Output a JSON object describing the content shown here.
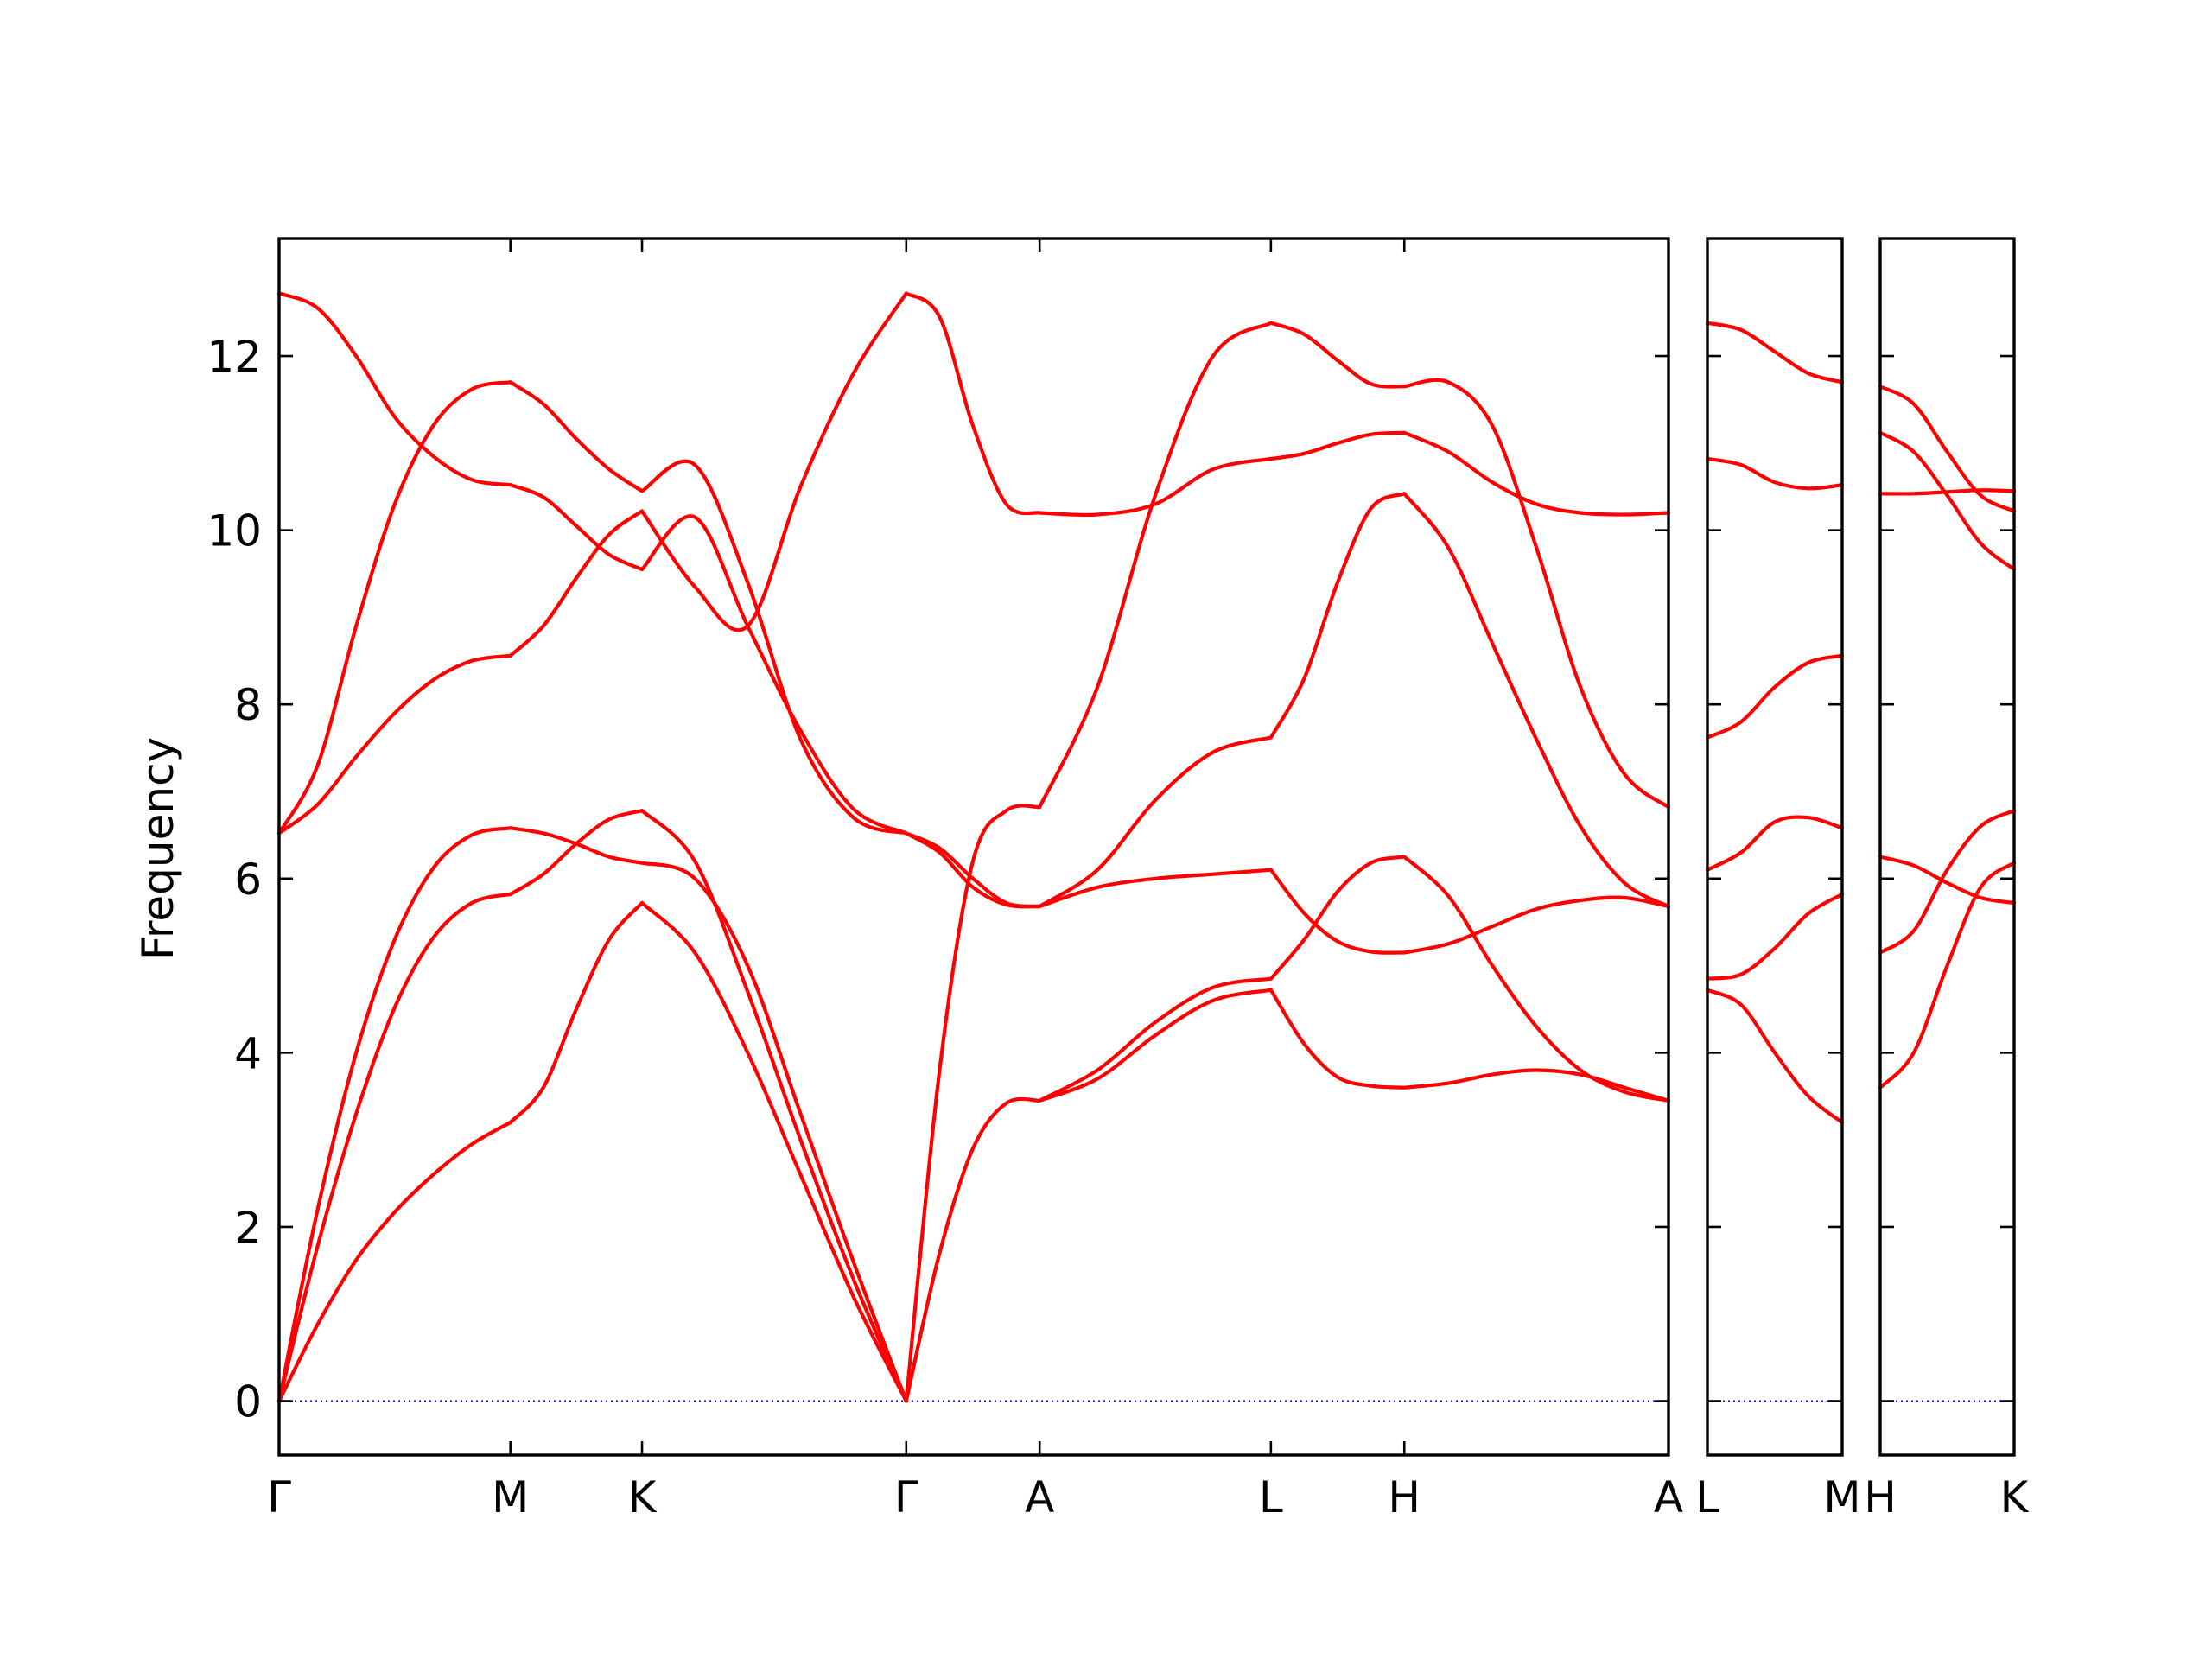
{
  "chart_data": {
    "type": "line",
    "title": "",
    "xlabel": "",
    "ylabel": "Frequency",
    "ylim": [
      -0.62,
      13.35
    ],
    "yticks": [
      0,
      2,
      4,
      6,
      8,
      10,
      12
    ],
    "grid": false,
    "legend": "none",
    "colors": {
      "bands": "#ff0000",
      "zero_line": "#0000ff",
      "frame": "#000000"
    },
    "panels": [
      {
        "labels": [
          "Γ",
          "M",
          "K",
          "Γ",
          "A",
          "L",
          "H",
          "A"
        ],
        "segments": [
          {
            "from": "Γ",
            "to": "M",
            "bands": [
              [
                0.0,
                0.88,
                1.62,
                2.17,
                2.6,
                2.95,
                3.2
              ],
              [
                0.0,
                1.78,
                3.3,
                4.52,
                5.32,
                5.72,
                5.82
              ],
              [
                0.0,
                2.2,
                4.0,
                5.3,
                6.12,
                6.5,
                6.58
              ],
              [
                6.52,
                6.85,
                7.4,
                7.9,
                8.28,
                8.5,
                8.56
              ],
              [
                6.52,
                7.3,
                8.9,
                10.3,
                11.2,
                11.62,
                11.7
              ],
              [
                12.72,
                12.55,
                12.0,
                11.3,
                10.85,
                10.58,
                10.52
              ]
            ]
          },
          {
            "from": "M",
            "to": "K",
            "bands": [
              [
                3.2,
                3.6,
                4.5,
                5.3,
                5.72
              ],
              [
                5.82,
                6.05,
                6.4,
                6.68,
                6.78
              ],
              [
                6.58,
                6.52,
                6.4,
                6.25,
                6.18
              ],
              [
                8.56,
                8.9,
                9.45,
                9.95,
                10.22
              ],
              [
                11.7,
                11.45,
                11.05,
                10.7,
                10.45
              ],
              [
                10.52,
                10.38,
                10.05,
                9.72,
                9.55
              ]
            ]
          },
          {
            "from": "K",
            "to": "Γ",
            "bands": [
              [
                5.72,
                5.15,
                4.0,
                2.6,
                1.2,
                0.0
              ],
              [
                6.78,
                6.2,
                4.7,
                3.0,
                1.4,
                0.0
              ],
              [
                6.18,
                6.0,
                5.0,
                3.3,
                1.6,
                0.0
              ],
              [
                9.55,
                10.15,
                8.9,
                7.7,
                6.8,
                6.52
              ],
              [
                10.45,
                10.75,
                9.4,
                7.6,
                6.7,
                6.52
              ],
              [
                10.22,
                9.35,
                8.9,
                10.5,
                11.8,
                12.72
              ]
            ]
          },
          {
            "from": "Γ",
            "to": "A",
            "bands": [
              [
                0.0,
                1.7,
                2.9,
                3.42,
                3.45
              ],
              [
                0.0,
                3.8,
                6.2,
                6.78,
                6.82
              ],
              [
                6.52,
                6.3,
                5.9,
                5.7,
                5.68
              ],
              [
                6.52,
                6.35,
                6.0,
                5.72,
                5.68
              ],
              [
                12.72,
                12.45,
                11.2,
                10.3,
                10.2
              ]
            ]
          },
          {
            "from": "A",
            "to": "L",
            "bands": [
              [
                3.45,
                3.7,
                4.2,
                4.6,
                4.72
              ],
              [
                3.45,
                3.8,
                4.35,
                4.75,
                4.85
              ],
              [
                5.68,
                5.9,
                6.0,
                6.05,
                6.1
              ],
              [
                5.68,
                6.1,
                6.9,
                7.45,
                7.62
              ],
              [
                6.82,
                8.2,
                10.4,
                12.0,
                12.38
              ],
              [
                10.2,
                10.18,
                10.3,
                10.7,
                10.82
              ]
            ]
          },
          {
            "from": "L",
            "to": "H",
            "bands": [
              [
                4.72,
                4.1,
                3.72,
                3.62,
                3.6
              ],
              [
                4.85,
                5.3,
                5.85,
                6.18,
                6.25
              ],
              [
                6.1,
                5.6,
                5.28,
                5.16,
                5.15
              ],
              [
                7.62,
                8.3,
                9.4,
                10.25,
                10.42
              ],
              [
                10.82,
                10.88,
                11.0,
                11.1,
                11.12
              ],
              [
                12.38,
                12.25,
                11.95,
                11.68,
                11.65
              ]
            ]
          },
          {
            "from": "H",
            "to": "A",
            "bands": [
              [
                3.6,
                3.65,
                3.75,
                3.8,
                3.75,
                3.6,
                3.45
              ],
              [
                6.25,
                5.8,
                5.0,
                4.3,
                3.8,
                3.55,
                3.45
              ],
              [
                5.15,
                5.25,
                5.45,
                5.65,
                5.75,
                5.78,
                5.68
              ],
              [
                10.42,
                9.8,
                8.7,
                7.6,
                6.6,
                5.95,
                5.68
              ],
              [
                11.12,
                10.9,
                10.55,
                10.3,
                10.2,
                10.18,
                10.2
              ],
              [
                11.65,
                11.7,
                11.2,
                9.8,
                8.2,
                7.2,
                6.82
              ]
            ]
          }
        ]
      },
      {
        "labels": [
          "L",
          "M"
        ],
        "segments": [
          {
            "from": "L",
            "to": "M",
            "bands": [
              [
                4.72,
                4.55,
                4.0,
                3.5,
                3.2
              ],
              [
                4.85,
                4.9,
                5.2,
                5.6,
                5.82
              ],
              [
                6.1,
                6.3,
                6.65,
                6.7,
                6.58
              ],
              [
                7.62,
                7.8,
                8.2,
                8.48,
                8.56
              ],
              [
                10.82,
                10.75,
                10.55,
                10.48,
                10.52
              ],
              [
                12.38,
                12.3,
                12.05,
                11.8,
                11.7
              ]
            ]
          }
        ]
      },
      {
        "labels": [
          "H",
          "K"
        ],
        "segments": [
          {
            "from": "H",
            "to": "K",
            "bands": [
              [
                3.6,
                4.0,
                5.0,
                5.9,
                6.18
              ],
              [
                5.15,
                5.4,
                6.1,
                6.6,
                6.78
              ],
              [
                6.25,
                6.15,
                5.95,
                5.78,
                5.72
              ],
              [
                10.42,
                10.42,
                10.44,
                10.46,
                10.45
              ],
              [
                11.12,
                10.9,
                10.4,
                9.85,
                9.55
              ],
              [
                11.65,
                11.45,
                10.9,
                10.4,
                10.22
              ]
            ]
          }
        ]
      }
    ]
  }
}
